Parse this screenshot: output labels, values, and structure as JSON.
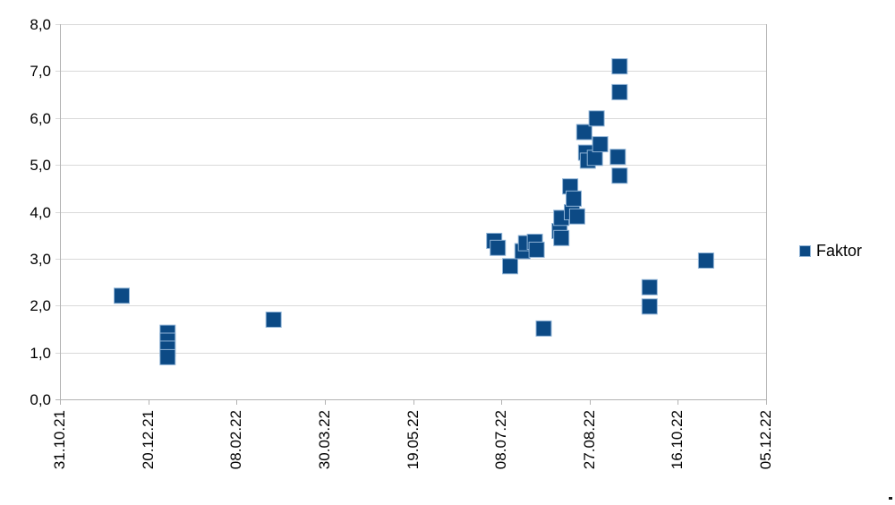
{
  "chart_data": {
    "type": "scatter",
    "title": "",
    "series": [
      {
        "name": "Faktor",
        "points": [
          {
            "date": "05.12.21",
            "value": 2.21
          },
          {
            "date": "31.12.21",
            "value": 1.42
          },
          {
            "date": "31.12.21",
            "value": 1.25
          },
          {
            "date": "31.12.21",
            "value": 1.08
          },
          {
            "date": "31.12.21",
            "value": 0.9
          },
          {
            "date": "01.03.22",
            "value": 1.7
          },
          {
            "date": "04.07.22",
            "value": 3.38
          },
          {
            "date": "06.07.22",
            "value": 3.23
          },
          {
            "date": "13.07.22",
            "value": 2.84
          },
          {
            "date": "20.07.22",
            "value": 3.16
          },
          {
            "date": "22.07.22",
            "value": 3.33
          },
          {
            "date": "27.07.22",
            "value": 3.36
          },
          {
            "date": "28.07.22",
            "value": 3.19
          },
          {
            "date": "01.08.22",
            "value": 1.51
          },
          {
            "date": "10.08.22",
            "value": 3.59
          },
          {
            "date": "11.08.22",
            "value": 3.44
          },
          {
            "date": "11.08.22",
            "value": 3.87
          },
          {
            "date": "16.08.22",
            "value": 4.54
          },
          {
            "date": "17.08.22",
            "value": 3.99
          },
          {
            "date": "18.08.22",
            "value": 4.28
          },
          {
            "date": "20.08.22",
            "value": 3.9
          },
          {
            "date": "24.08.22",
            "value": 5.7
          },
          {
            "date": "25.08.22",
            "value": 5.26
          },
          {
            "date": "26.08.22",
            "value": 5.09
          },
          {
            "date": "30.08.22",
            "value": 5.15
          },
          {
            "date": "31.08.22",
            "value": 5.99
          },
          {
            "date": "02.09.22",
            "value": 5.44
          },
          {
            "date": "12.09.22",
            "value": 5.17
          },
          {
            "date": "13.09.22",
            "value": 4.77
          },
          {
            "date": "13.09.22",
            "value": 7.1
          },
          {
            "date": "13.09.22",
            "value": 6.55
          },
          {
            "date": "30.09.22",
            "value": 2.39
          },
          {
            "date": "30.09.22",
            "value": 1.98
          },
          {
            "date": "01.11.22",
            "value": 2.96
          }
        ]
      }
    ],
    "x_axis": {
      "tick_labels": [
        "31.10.21",
        "20.12.21",
        "08.02.22",
        "30.03.22",
        "19.05.22",
        "08.07.22",
        "27.08.22",
        "16.10.22",
        "05.12.22"
      ],
      "start_date": "31.10.21",
      "end_date": "05.12.22",
      "tick_interval_days": 50,
      "label_rotation_deg": 90
    },
    "y_axis": {
      "min": 0,
      "max": 8,
      "step": 1,
      "tick_labels": [
        "0,0",
        "1,0",
        "2,0",
        "3,0",
        "4,0",
        "5,0",
        "6,0",
        "7,0",
        "8,0"
      ]
    },
    "grid": "horizontal",
    "legend_position": "right",
    "number_format": "decimal-comma"
  },
  "legend": {
    "label": "Faktor"
  },
  "colors": {
    "point_fill": "#0c4a85",
    "point_border": "#8fb3d6",
    "gridline": "#d9d9d9",
    "axis_line": "#b3b3b3",
    "label_text": "#000000",
    "background": "#ffffff"
  }
}
